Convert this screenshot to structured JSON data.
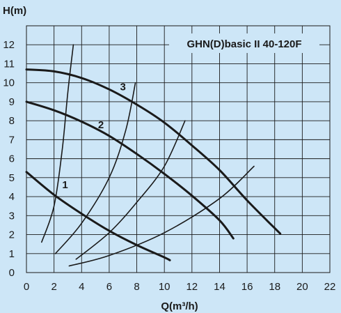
{
  "chart_data": {
    "type": "line",
    "title": "GHN(D)basic II 40-120F",
    "xlabel": "Q(m³/h)",
    "ylabel": "H(m)",
    "xlim": [
      0,
      22
    ],
    "ylim": [
      0,
      13
    ],
    "x_ticks": [
      "0",
      "2",
      "4",
      "6",
      "8",
      "10",
      "12",
      "14",
      "16",
      "18",
      "20",
      "22"
    ],
    "y_ticks": [
      "0",
      "1",
      "2",
      "3",
      "4",
      "5",
      "6",
      "7",
      "8",
      "9",
      "10",
      "11",
      "12"
    ],
    "grid": true,
    "series": [
      {
        "name": "1",
        "kind": "pump",
        "points": [
          [
            0,
            5.3
          ],
          [
            2,
            4.1
          ],
          [
            4,
            3.1
          ],
          [
            6,
            2.2
          ],
          [
            8,
            1.45
          ],
          [
            10,
            0.8
          ],
          [
            10.4,
            0.65
          ]
        ]
      },
      {
        "name": "2",
        "kind": "pump",
        "points": [
          [
            0,
            9.0
          ],
          [
            2,
            8.55
          ],
          [
            4,
            7.95
          ],
          [
            6,
            7.2
          ],
          [
            8,
            6.25
          ],
          [
            10,
            5.2
          ],
          [
            12,
            4.05
          ],
          [
            14,
            2.75
          ],
          [
            15,
            1.8
          ]
        ]
      },
      {
        "name": "3",
        "kind": "pump",
        "points": [
          [
            0,
            10.7
          ],
          [
            2,
            10.6
          ],
          [
            4,
            10.25
          ],
          [
            6,
            9.65
          ],
          [
            8,
            8.85
          ],
          [
            10,
            7.9
          ],
          [
            12,
            6.7
          ],
          [
            14,
            5.4
          ],
          [
            16,
            3.8
          ],
          [
            18.4,
            2.05
          ]
        ]
      },
      {
        "kind": "system",
        "points": [
          [
            1.1,
            1.6
          ],
          [
            2,
            3.5
          ],
          [
            2.6,
            6.5
          ],
          [
            3.0,
            9.5
          ],
          [
            3.4,
            12.0
          ]
        ]
      },
      {
        "kind": "system",
        "points": [
          [
            2.1,
            1.0
          ],
          [
            4,
            2.6
          ],
          [
            6,
            5.0
          ],
          [
            7.2,
            7.5
          ],
          [
            7.9,
            10.0
          ]
        ]
      },
      {
        "kind": "system",
        "points": [
          [
            3.6,
            0.7
          ],
          [
            6,
            2.1
          ],
          [
            8,
            3.7
          ],
          [
            10,
            5.6
          ],
          [
            11.5,
            8.0
          ]
        ]
      },
      {
        "kind": "system",
        "points": [
          [
            3.1,
            0.35
          ],
          [
            6,
            0.9
          ],
          [
            10,
            2.1
          ],
          [
            14,
            3.9
          ],
          [
            16.5,
            5.6
          ]
        ]
      }
    ],
    "curve_labels": [
      {
        "text": "1",
        "x": 2.8,
        "y": 4.45
      },
      {
        "text": "2",
        "x": 5.4,
        "y": 7.6
      },
      {
        "text": "3",
        "x": 7.0,
        "y": 9.6
      }
    ]
  }
}
